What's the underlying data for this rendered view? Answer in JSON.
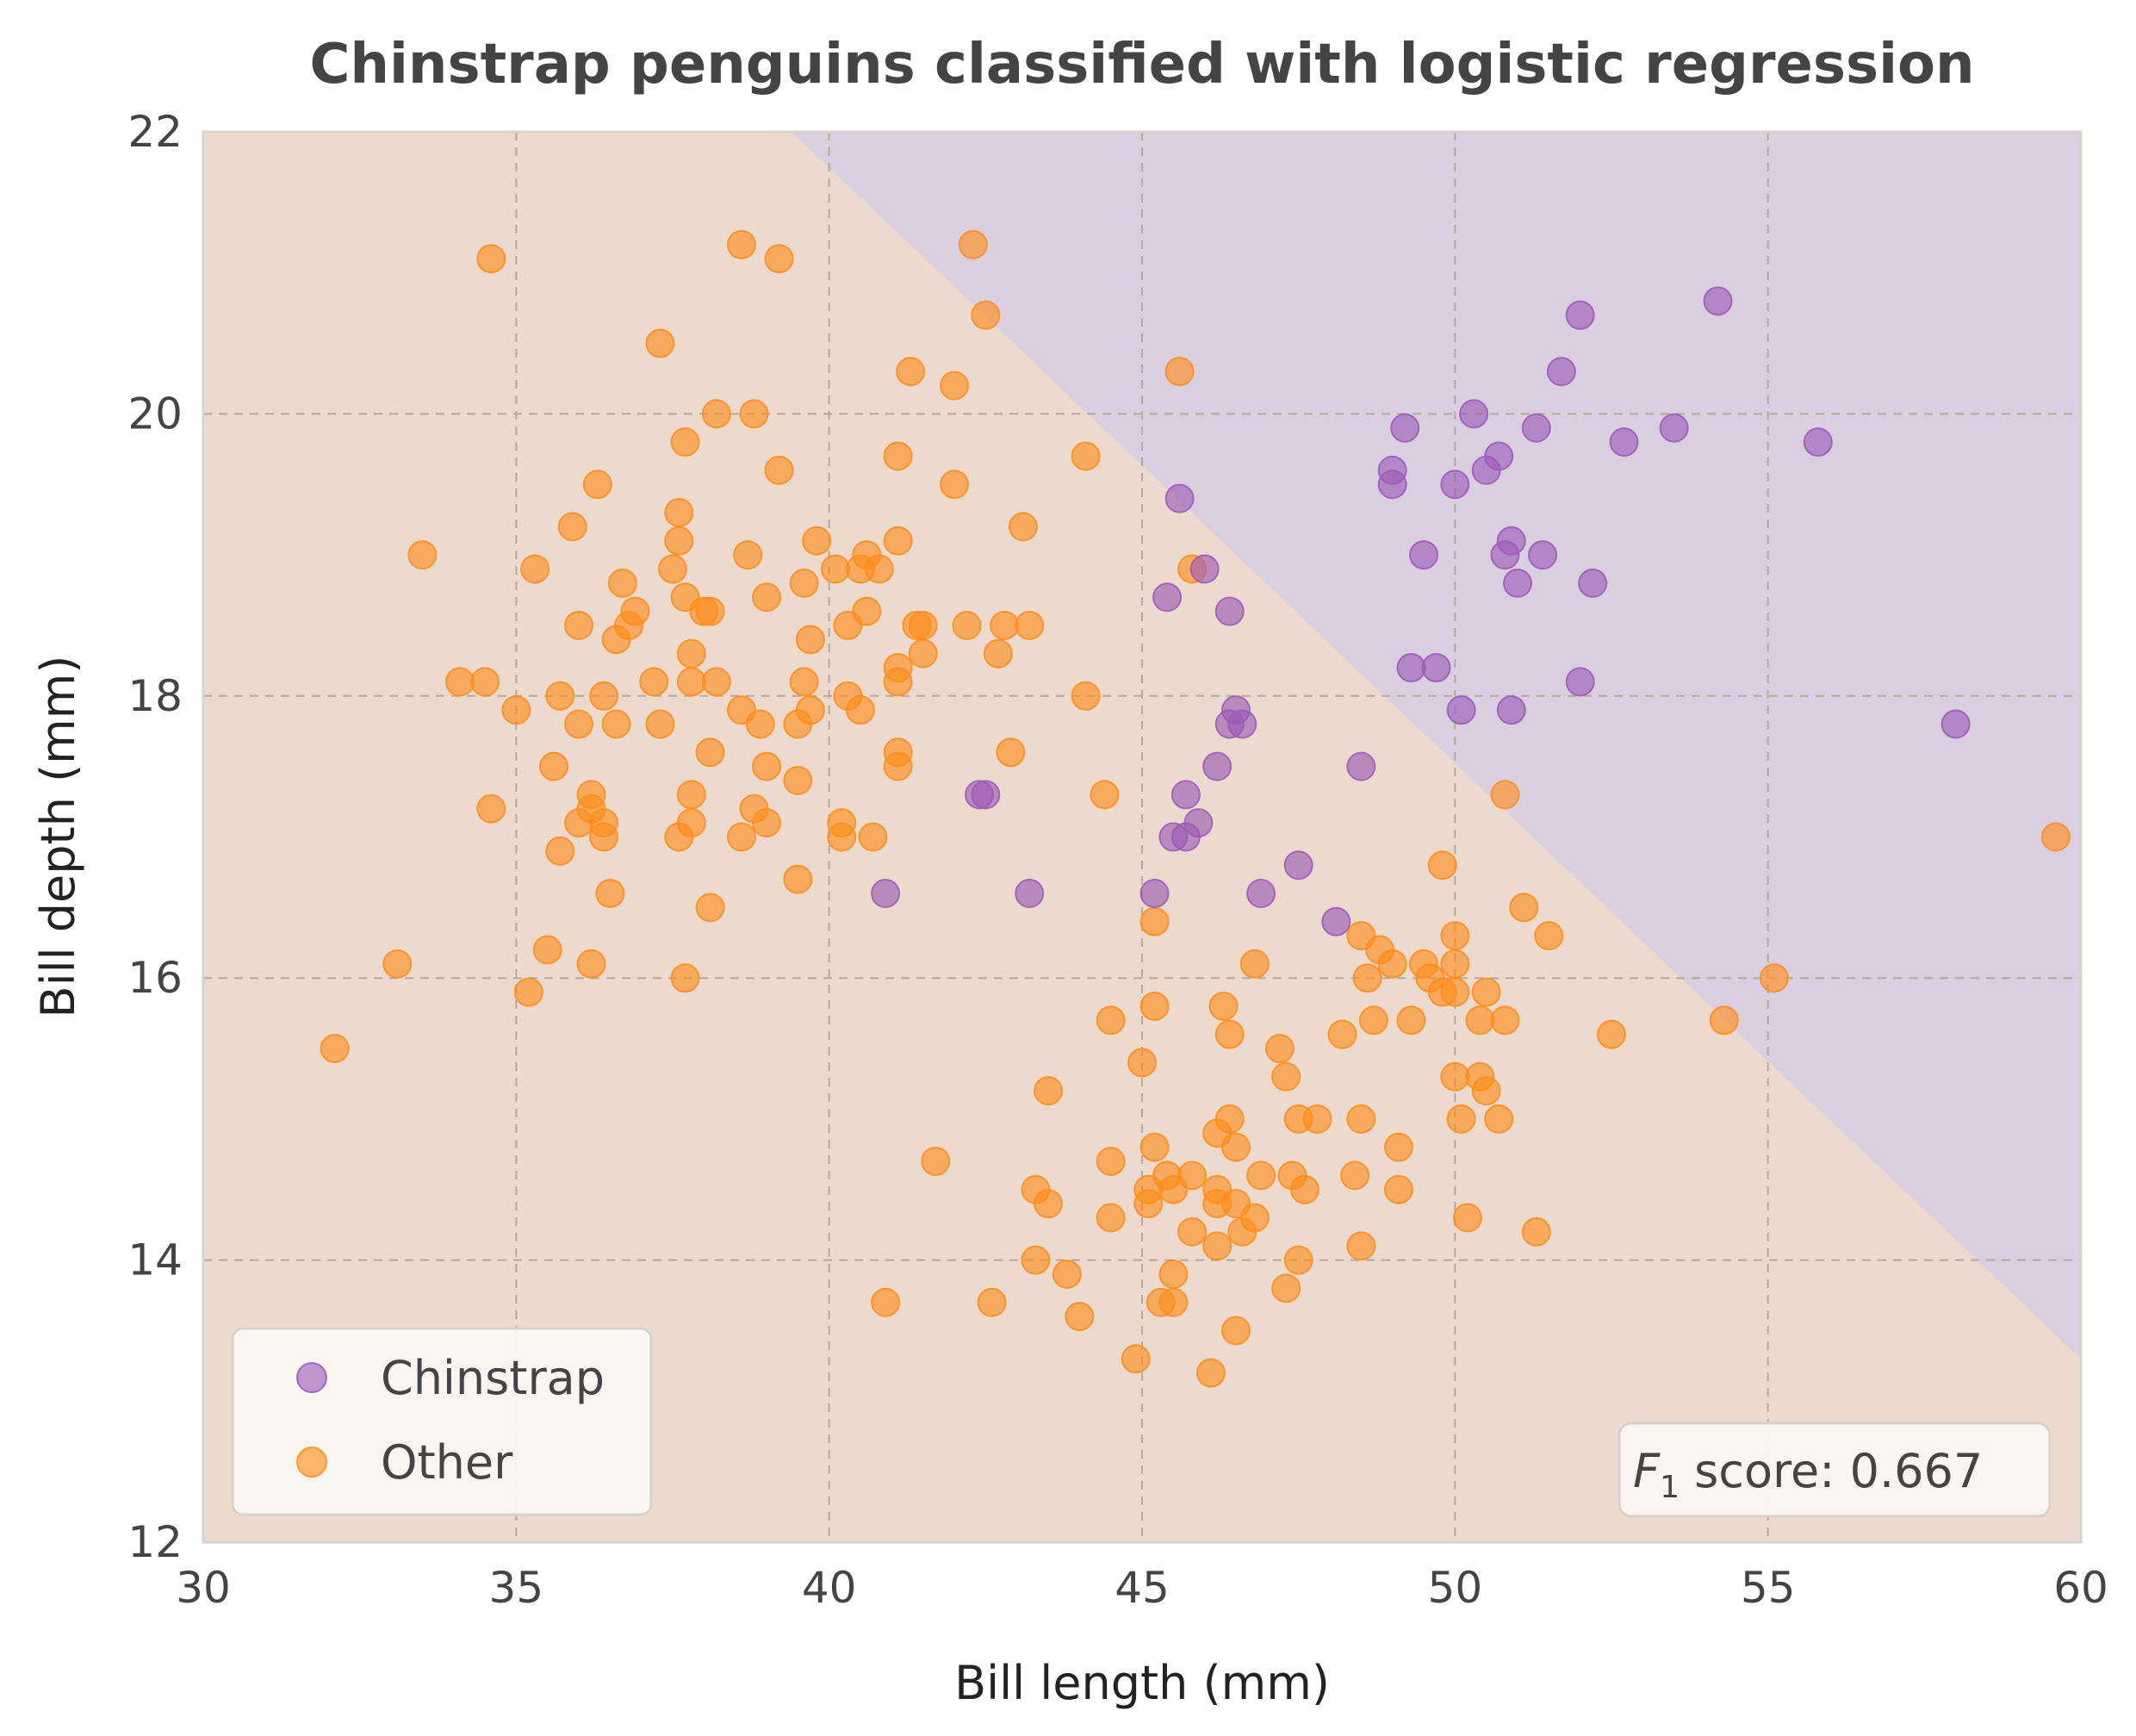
{
  "chart_data": {
    "type": "scatter",
    "title": "Chinstrap penguins classified with logistic regression",
    "xlabel": "Bill length (mm)",
    "ylabel": "Bill depth (mm)",
    "xlim": [
      30,
      60
    ],
    "ylim": [
      12,
      22
    ],
    "xticks": [
      "30",
      "35",
      "40",
      "45",
      "50",
      "55",
      "60"
    ],
    "yticks": [
      "12",
      "14",
      "16",
      "18",
      "20",
      "22"
    ],
    "grid": true,
    "legend_position": "lower-left",
    "annotation": {
      "prefix": "F",
      "subscript": "1",
      "text": " score: 0.667"
    },
    "decision_boundary": {
      "points": [
        [
          39.4,
          22
        ],
        [
          60,
          13.3
        ]
      ],
      "chinstrap_region": "upper-right",
      "chinstrap_region_color": "#d9cfe1",
      "other_region_color": "#ecdace"
    },
    "series": [
      {
        "name": "Chinstrap",
        "color": "#9b59b6",
        "points": [
          [
            54.2,
            20.8
          ],
          [
            52.0,
            20.7
          ],
          [
            50.3,
            20.0
          ],
          [
            49.2,
            19.9
          ],
          [
            51.3,
            19.9
          ],
          [
            53.5,
            19.9
          ],
          [
            52.7,
            19.8
          ],
          [
            55.8,
            19.8
          ],
          [
            50.7,
            19.7
          ],
          [
            49.0,
            19.6
          ],
          [
            50.5,
            19.6
          ],
          [
            49.0,
            19.5
          ],
          [
            50.0,
            19.5
          ],
          [
            45.6,
            19.4
          ],
          [
            51.7,
            20.3
          ],
          [
            50.9,
            19.1
          ],
          [
            49.5,
            19.0
          ],
          [
            50.8,
            19.0
          ],
          [
            51.4,
            19.0
          ],
          [
            46.0,
            18.9
          ],
          [
            51.0,
            18.8
          ],
          [
            52.2,
            18.8
          ],
          [
            45.4,
            18.7
          ],
          [
            46.4,
            18.6
          ],
          [
            49.3,
            18.2
          ],
          [
            49.7,
            18.2
          ],
          [
            52.0,
            18.1
          ],
          [
            50.1,
            17.9
          ],
          [
            50.9,
            17.9
          ],
          [
            46.5,
            17.9
          ],
          [
            46.4,
            17.8
          ],
          [
            46.6,
            17.8
          ],
          [
            58.0,
            17.8
          ],
          [
            46.2,
            17.5
          ],
          [
            48.5,
            17.5
          ],
          [
            42.4,
            17.3
          ],
          [
            42.5,
            17.3
          ],
          [
            45.7,
            17.3
          ],
          [
            45.9,
            17.1
          ],
          [
            45.5,
            17.0
          ],
          [
            45.7,
            17.0
          ],
          [
            47.5,
            16.8
          ],
          [
            40.9,
            16.6
          ],
          [
            43.2,
            16.6
          ],
          [
            45.2,
            16.6
          ],
          [
            46.9,
            16.6
          ],
          [
            48.1,
            16.4
          ]
        ]
      },
      {
        "name": "Other",
        "color": "#ff8c1a",
        "points": [
          [
            38.6,
            21.2
          ],
          [
            42.3,
            21.2
          ],
          [
            34.6,
            21.1
          ],
          [
            39.2,
            21.1
          ],
          [
            42.5,
            20.7
          ],
          [
            37.3,
            20.5
          ],
          [
            41.3,
            20.3
          ],
          [
            45.6,
            20.3
          ],
          [
            42.0,
            20.2
          ],
          [
            38.2,
            20.0
          ],
          [
            38.8,
            20.0
          ],
          [
            37.7,
            19.8
          ],
          [
            41.1,
            19.7
          ],
          [
            44.1,
            19.7
          ],
          [
            39.2,
            19.6
          ],
          [
            36.3,
            19.5
          ],
          [
            42.0,
            19.5
          ],
          [
            37.6,
            19.3
          ],
          [
            35.9,
            19.2
          ],
          [
            43.1,
            19.2
          ],
          [
            37.6,
            19.1
          ],
          [
            39.8,
            19.1
          ],
          [
            41.1,
            19.1
          ],
          [
            33.5,
            19.0
          ],
          [
            38.7,
            19.0
          ],
          [
            40.6,
            19.0
          ],
          [
            35.3,
            18.9
          ],
          [
            37.5,
            18.9
          ],
          [
            40.1,
            18.9
          ],
          [
            40.8,
            18.9
          ],
          [
            45.8,
            18.9
          ],
          [
            36.7,
            18.8
          ],
          [
            39.6,
            18.8
          ],
          [
            40.5,
            18.9
          ],
          [
            37.7,
            18.7
          ],
          [
            39.0,
            18.7
          ],
          [
            36.9,
            18.6
          ],
          [
            38.0,
            18.6
          ],
          [
            38.1,
            18.6
          ],
          [
            40.6,
            18.6
          ],
          [
            36.0,
            18.5
          ],
          [
            36.8,
            18.5
          ],
          [
            40.3,
            18.5
          ],
          [
            41.4,
            18.5
          ],
          [
            41.5,
            18.5
          ],
          [
            42.2,
            18.5
          ],
          [
            42.8,
            18.5
          ],
          [
            43.2,
            18.5
          ],
          [
            36.6,
            18.4
          ],
          [
            39.7,
            18.4
          ],
          [
            37.8,
            18.3
          ],
          [
            41.5,
            18.3
          ],
          [
            42.7,
            18.3
          ],
          [
            41.1,
            18.2
          ],
          [
            34.1,
            18.1
          ],
          [
            34.5,
            18.1
          ],
          [
            37.2,
            18.1
          ],
          [
            37.8,
            18.1
          ],
          [
            38.2,
            18.1
          ],
          [
            39.6,
            18.1
          ],
          [
            41.1,
            18.1
          ],
          [
            35.7,
            18.0
          ],
          [
            36.4,
            18.0
          ],
          [
            40.3,
            18.0
          ],
          [
            44.1,
            18.0
          ],
          [
            35.0,
            17.9
          ],
          [
            38.6,
            17.9
          ],
          [
            39.7,
            17.9
          ],
          [
            40.5,
            17.9
          ],
          [
            36.0,
            17.8
          ],
          [
            36.6,
            17.8
          ],
          [
            37.3,
            17.8
          ],
          [
            38.9,
            17.8
          ],
          [
            39.5,
            17.8
          ],
          [
            38.1,
            17.6
          ],
          [
            41.1,
            17.6
          ],
          [
            42.9,
            17.6
          ],
          [
            35.6,
            17.5
          ],
          [
            39.0,
            17.5
          ],
          [
            41.1,
            17.5
          ],
          [
            39.5,
            17.4
          ],
          [
            36.2,
            17.3
          ],
          [
            37.8,
            17.3
          ],
          [
            44.4,
            17.3
          ],
          [
            50.8,
            17.3
          ],
          [
            34.6,
            17.2
          ],
          [
            36.2,
            17.2
          ],
          [
            38.8,
            17.2
          ],
          [
            36.0,
            17.1
          ],
          [
            36.4,
            17.1
          ],
          [
            37.8,
            17.1
          ],
          [
            39.0,
            17.1
          ],
          [
            40.2,
            17.1
          ],
          [
            36.4,
            17.0
          ],
          [
            37.6,
            17.0
          ],
          [
            38.6,
            17.0
          ],
          [
            40.2,
            17.0
          ],
          [
            40.7,
            17.0
          ],
          [
            59.6,
            17.0
          ],
          [
            35.7,
            16.9
          ],
          [
            49.8,
            16.8
          ],
          [
            39.5,
            16.7
          ],
          [
            36.5,
            16.6
          ],
          [
            38.1,
            16.5
          ],
          [
            51.1,
            16.5
          ],
          [
            45.2,
            16.4
          ],
          [
            48.5,
            16.3
          ],
          [
            50.0,
            16.3
          ],
          [
            51.5,
            16.3
          ],
          [
            35.5,
            16.2
          ],
          [
            48.8,
            16.2
          ],
          [
            33.1,
            16.1
          ],
          [
            36.2,
            16.1
          ],
          [
            46.8,
            16.1
          ],
          [
            49.0,
            16.1
          ],
          [
            49.5,
            16.1
          ],
          [
            50.0,
            16.1
          ],
          [
            37.7,
            16.0
          ],
          [
            48.6,
            16.0
          ],
          [
            49.6,
            16.0
          ],
          [
            55.1,
            16.0
          ],
          [
            35.2,
            15.9
          ],
          [
            49.8,
            15.9
          ],
          [
            50.0,
            15.9
          ],
          [
            50.5,
            15.9
          ],
          [
            45.2,
            15.8
          ],
          [
            46.3,
            15.8
          ],
          [
            44.5,
            15.7
          ],
          [
            48.7,
            15.7
          ],
          [
            49.3,
            15.7
          ],
          [
            50.4,
            15.7
          ],
          [
            50.8,
            15.7
          ],
          [
            54.3,
            15.7
          ],
          [
            46.4,
            15.6
          ],
          [
            48.2,
            15.6
          ],
          [
            52.5,
            15.6
          ],
          [
            32.1,
            15.5
          ],
          [
            47.2,
            15.5
          ],
          [
            45.0,
            15.4
          ],
          [
            47.3,
            15.3
          ],
          [
            50.0,
            15.3
          ],
          [
            50.4,
            15.3
          ],
          [
            43.5,
            15.2
          ],
          [
            50.5,
            15.2
          ],
          [
            46.4,
            15.0
          ],
          [
            47.5,
            15.0
          ],
          [
            47.8,
            15.0
          ],
          [
            48.5,
            15.0
          ],
          [
            50.1,
            15.0
          ],
          [
            50.7,
            15.0
          ],
          [
            46.2,
            14.9
          ],
          [
            45.2,
            14.8
          ],
          [
            46.5,
            14.8
          ],
          [
            49.1,
            14.8
          ],
          [
            41.7,
            14.7
          ],
          [
            44.5,
            14.7
          ],
          [
            45.4,
            14.6
          ],
          [
            45.8,
            14.6
          ],
          [
            46.9,
            14.6
          ],
          [
            47.4,
            14.6
          ],
          [
            48.4,
            14.6
          ],
          [
            43.3,
            14.5
          ],
          [
            45.1,
            14.5
          ],
          [
            45.5,
            14.5
          ],
          [
            46.2,
            14.5
          ],
          [
            47.6,
            14.5
          ],
          [
            49.1,
            14.5
          ],
          [
            43.5,
            14.4
          ],
          [
            45.1,
            14.4
          ],
          [
            46.2,
            14.4
          ],
          [
            46.5,
            14.4
          ],
          [
            44.5,
            14.3
          ],
          [
            46.8,
            14.3
          ],
          [
            50.2,
            14.3
          ],
          [
            45.8,
            14.2
          ],
          [
            46.6,
            14.2
          ],
          [
            51.3,
            14.2
          ],
          [
            46.2,
            14.1
          ],
          [
            48.5,
            14.1
          ],
          [
            43.3,
            14.0
          ],
          [
            47.5,
            14.0
          ],
          [
            43.8,
            13.9
          ],
          [
            45.5,
            13.9
          ],
          [
            47.3,
            13.8
          ],
          [
            40.9,
            13.7
          ],
          [
            42.6,
            13.7
          ],
          [
            45.3,
            13.7
          ],
          [
            45.5,
            13.7
          ],
          [
            44.0,
            13.6
          ],
          [
            46.5,
            13.5
          ],
          [
            44.9,
            13.3
          ],
          [
            46.1,
            13.2
          ]
        ]
      }
    ]
  }
}
